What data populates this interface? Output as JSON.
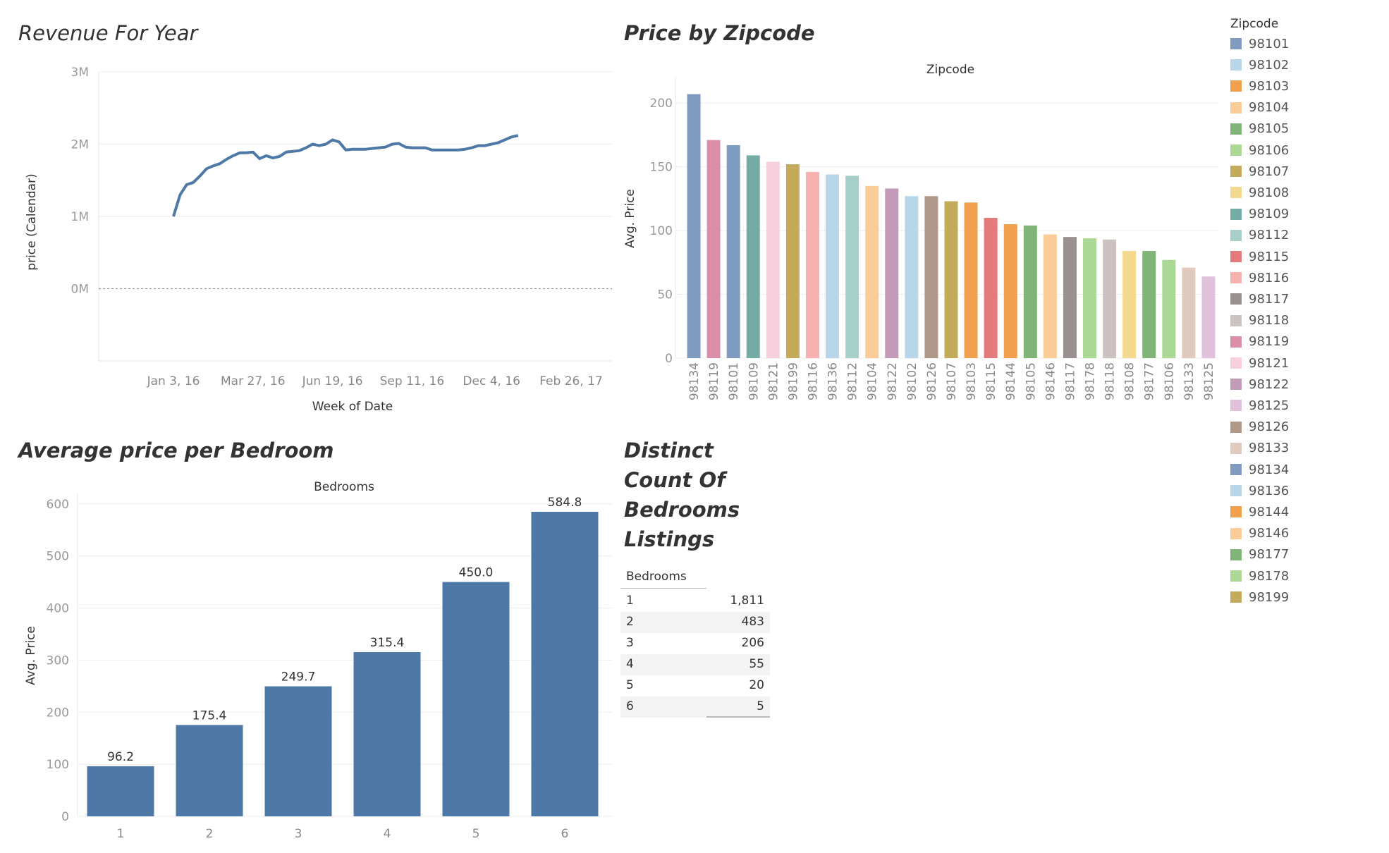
{
  "titles": {
    "revenue": "Revenue For Year",
    "zipcode": "Price by Zipcode",
    "bedroom": "Average price per  Bedroom",
    "distinct": [
      "Distinct",
      "Count Of",
      "Bedrooms",
      "Listings"
    ]
  },
  "chart_data": [
    {
      "type": "line",
      "title": "Revenue For Year",
      "xlabel": "Week of Date",
      "ylabel": "price (Calendar)",
      "x_ticks": [
        "Jan 3, 16",
        "Mar 27, 16",
        "Jun 19, 16",
        "Sep 11, 16",
        "Dec 4, 16",
        "Feb 26, 17"
      ],
      "y_ticks": [
        "3M",
        "2M",
        "1M",
        "0M"
      ],
      "ylim": [
        -1000000,
        3000000
      ],
      "color": "#4e79a7",
      "series": [
        {
          "x": [
            "2016-01-03",
            "2016-01-10",
            "2016-01-17",
            "2016-01-24",
            "2016-01-31",
            "2016-02-07",
            "2016-02-14",
            "2016-02-21",
            "2016-02-28",
            "2016-03-06",
            "2016-03-13",
            "2016-03-20",
            "2016-03-27",
            "2016-04-03",
            "2016-04-10",
            "2016-04-17",
            "2016-04-24",
            "2016-05-01",
            "2016-05-08",
            "2016-05-15",
            "2016-05-22",
            "2016-05-29",
            "2016-06-05",
            "2016-06-12",
            "2016-06-19",
            "2016-06-26",
            "2016-07-03",
            "2016-07-10",
            "2016-07-17",
            "2016-07-24",
            "2016-07-31",
            "2016-08-07",
            "2016-08-14",
            "2016-08-21",
            "2016-08-28",
            "2016-09-04",
            "2016-09-11",
            "2016-09-18",
            "2016-09-25",
            "2016-10-02",
            "2016-10-09",
            "2016-10-16",
            "2016-10-23",
            "2016-10-30",
            "2016-11-06",
            "2016-11-13",
            "2016-11-20",
            "2016-11-27",
            "2016-12-04",
            "2016-12-11",
            "2016-12-18",
            "2016-12-25",
            "2017-01-01"
          ],
          "values": [
            1000000,
            1300000,
            1440000,
            1470000,
            1560000,
            1660000,
            1700000,
            1730000,
            1790000,
            1840000,
            1880000,
            1880000,
            1890000,
            1800000,
            1840000,
            1810000,
            1830000,
            1890000,
            1900000,
            1910000,
            1950000,
            2000000,
            1980000,
            2000000,
            2060000,
            2030000,
            1920000,
            1930000,
            1930000,
            1930000,
            1940000,
            1950000,
            1960000,
            2000000,
            2010000,
            1960000,
            1950000,
            1950000,
            1950000,
            1920000,
            1920000,
            1920000,
            1920000,
            1920000,
            1930000,
            1950000,
            1980000,
            1980000,
            2000000,
            2020000,
            2060000,
            2100000,
            2120000
          ]
        }
      ]
    },
    {
      "type": "bar",
      "title": "Price by Zipcode",
      "header": "Zipcode",
      "ylabel": "Avg. Price",
      "y_ticks": [
        200,
        150,
        100,
        50,
        0
      ],
      "ylim": [
        0,
        220
      ],
      "categories": [
        "98134",
        "98119",
        "98101",
        "98109",
        "98121",
        "98199",
        "98116",
        "98136",
        "98112",
        "98104",
        "98122",
        "98102",
        "98126",
        "98107",
        "98103",
        "98115",
        "98144",
        "98105",
        "98146",
        "98117",
        "98178",
        "98118",
        "98108",
        "98177",
        "98106",
        "98133",
        "98125"
      ],
      "values": [
        207,
        171,
        167,
        159,
        154,
        152,
        146,
        144,
        143,
        135,
        133,
        127,
        127,
        123,
        122,
        110,
        105,
        104,
        97,
        95,
        94,
        93,
        84,
        84,
        77,
        71,
        64
      ]
    },
    {
      "type": "bar",
      "title": "Average price per  Bedroom",
      "header": "Bedrooms",
      "ylabel": "Avg. Price",
      "y_ticks": [
        600,
        500,
        400,
        300,
        200,
        100,
        0
      ],
      "ylim": [
        0,
        620
      ],
      "categories": [
        "1",
        "2",
        "3",
        "4",
        "5",
        "6"
      ],
      "values": [
        96.2,
        175.4,
        249.7,
        315.4,
        450.0,
        584.8
      ],
      "value_labels": [
        "96.2",
        "175.4",
        "249.7",
        "315.4",
        "450.0",
        "584.8"
      ],
      "color": "#4e79a7"
    },
    {
      "type": "table",
      "title": "Distinct Count Of Bedrooms Listings",
      "header": "Bedrooms",
      "rows": [
        {
          "bedrooms": "1",
          "count": "1,811"
        },
        {
          "bedrooms": "2",
          "count": "483"
        },
        {
          "bedrooms": "3",
          "count": "206"
        },
        {
          "bedrooms": "4",
          "count": "55"
        },
        {
          "bedrooms": "5",
          "count": "20"
        },
        {
          "bedrooms": "6",
          "count": "5"
        }
      ]
    }
  ],
  "legend": {
    "title": "Zipcode",
    "items": [
      {
        "label": "98101",
        "color": "#7f9cc0"
      },
      {
        "label": "98102",
        "color": "#b7d6ea"
      },
      {
        "label": "98103",
        "color": "#f1a04e"
      },
      {
        "label": "98104",
        "color": "#fbcc98"
      },
      {
        "label": "98105",
        "color": "#81b477"
      },
      {
        "label": "98106",
        "color": "#abd895"
      },
      {
        "label": "98107",
        "color": "#c3ab5b"
      },
      {
        "label": "98108",
        "color": "#f3d98d"
      },
      {
        "label": "98109",
        "color": "#76aca6"
      },
      {
        "label": "98112",
        "color": "#a7cfc9"
      },
      {
        "label": "98115",
        "color": "#e57a7c"
      },
      {
        "label": "98116",
        "color": "#f7b2b0"
      },
      {
        "label": "98117",
        "color": "#9a9090"
      },
      {
        "label": "98118",
        "color": "#cdc2c2"
      },
      {
        "label": "98119",
        "color": "#da8ea9"
      },
      {
        "label": "98121",
        "color": "#f8cfdd"
      },
      {
        "label": "98122",
        "color": "#c39bb9"
      },
      {
        "label": "98125",
        "color": "#e1c0dc"
      },
      {
        "label": "98126",
        "color": "#b09888"
      },
      {
        "label": "98133",
        "color": "#e0c9bd"
      },
      {
        "label": "98134",
        "color": "#7f9cc0"
      },
      {
        "label": "98136",
        "color": "#b7d6ea"
      },
      {
        "label": "98144",
        "color": "#f1a04e"
      },
      {
        "label": "98146",
        "color": "#fbcc98"
      },
      {
        "label": "98177",
        "color": "#81b477"
      },
      {
        "label": "98178",
        "color": "#abd895"
      },
      {
        "label": "98199",
        "color": "#c3ab5b"
      }
    ]
  }
}
